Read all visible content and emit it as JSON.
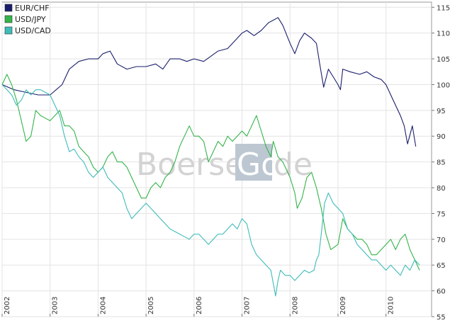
{
  "chart_data": {
    "type": "line",
    "title": "",
    "xlabel": "",
    "ylabel": "",
    "ylim": [
      55,
      116
    ],
    "xlim": [
      2002.0,
      2010.95
    ],
    "y_ticks": [
      55,
      60,
      65,
      70,
      75,
      80,
      85,
      90,
      95,
      100,
      105,
      110,
      115
    ],
    "x_ticks": [
      {
        "label": "2002",
        "value": 2002
      },
      {
        "label": "2003",
        "value": 2003
      },
      {
        "label": "2004",
        "value": 2004
      },
      {
        "label": "2005",
        "value": 2005
      },
      {
        "label": "2006",
        "value": 2006
      },
      {
        "label": "2007",
        "value": 2007
      },
      {
        "label": "2008",
        "value": 2008
      },
      {
        "label": "2009",
        "value": 2009
      },
      {
        "label": "2010",
        "value": 2010
      }
    ],
    "grid": true,
    "legend_position": "top-left",
    "watermark": {
      "text_left": "Boerse",
      "text_box": "Go",
      "text_right": "de"
    },
    "series": [
      {
        "name": "EUR/CHF",
        "color": "#1a1f6b",
        "points": [
          [
            2002.0,
            100
          ],
          [
            2002.25,
            99
          ],
          [
            2002.5,
            98.5
          ],
          [
            2002.75,
            98
          ],
          [
            2003.0,
            98
          ],
          [
            2003.25,
            100
          ],
          [
            2003.4,
            103
          ],
          [
            2003.6,
            104.5
          ],
          [
            2003.8,
            105
          ],
          [
            2004.0,
            105
          ],
          [
            2004.1,
            106
          ],
          [
            2004.25,
            106.5
          ],
          [
            2004.4,
            104
          ],
          [
            2004.6,
            103
          ],
          [
            2004.8,
            103.5
          ],
          [
            2005.0,
            103.5
          ],
          [
            2005.2,
            104
          ],
          [
            2005.35,
            103
          ],
          [
            2005.5,
            105
          ],
          [
            2005.7,
            105
          ],
          [
            2005.85,
            104.5
          ],
          [
            2006.0,
            105
          ],
          [
            2006.2,
            104.5
          ],
          [
            2006.35,
            105.5
          ],
          [
            2006.5,
            106.5
          ],
          [
            2006.7,
            107
          ],
          [
            2006.85,
            108.5
          ],
          [
            2007.0,
            110
          ],
          [
            2007.1,
            110.5
          ],
          [
            2007.25,
            109.5
          ],
          [
            2007.4,
            110.5
          ],
          [
            2007.55,
            112
          ],
          [
            2007.65,
            112.5
          ],
          [
            2007.75,
            113
          ],
          [
            2007.85,
            111.5
          ],
          [
            2008.0,
            108
          ],
          [
            2008.1,
            106
          ],
          [
            2008.2,
            108.5
          ],
          [
            2008.3,
            110
          ],
          [
            2008.45,
            109
          ],
          [
            2008.55,
            108
          ],
          [
            2008.62,
            104
          ],
          [
            2008.7,
            99.5
          ],
          [
            2008.8,
            103
          ],
          [
            2008.9,
            101.5
          ],
          [
            2009.0,
            100
          ],
          [
            2009.05,
            99
          ],
          [
            2009.1,
            103
          ],
          [
            2009.25,
            102.5
          ],
          [
            2009.45,
            102
          ],
          [
            2009.6,
            102.5
          ],
          [
            2009.75,
            101.5
          ],
          [
            2009.9,
            101
          ],
          [
            2010.0,
            100
          ],
          [
            2010.1,
            98
          ],
          [
            2010.2,
            96
          ],
          [
            2010.3,
            94
          ],
          [
            2010.38,
            92
          ],
          [
            2010.45,
            88.5
          ],
          [
            2010.55,
            92
          ],
          [
            2010.62,
            88
          ]
        ]
      },
      {
        "name": "USD/JPY",
        "color": "#33b44a",
        "points": [
          [
            2002.0,
            100
          ],
          [
            2002.1,
            102
          ],
          [
            2002.2,
            100
          ],
          [
            2002.3,
            97
          ],
          [
            2002.4,
            93
          ],
          [
            2002.5,
            89
          ],
          [
            2002.6,
            90
          ],
          [
            2002.7,
            95
          ],
          [
            2002.8,
            94
          ],
          [
            2002.9,
            93.5
          ],
          [
            2003.0,
            93
          ],
          [
            2003.1,
            94
          ],
          [
            2003.2,
            95
          ],
          [
            2003.3,
            92
          ],
          [
            2003.4,
            92
          ],
          [
            2003.5,
            91
          ],
          [
            2003.6,
            88
          ],
          [
            2003.7,
            87
          ],
          [
            2003.8,
            86
          ],
          [
            2003.9,
            84
          ],
          [
            2004.0,
            83
          ],
          [
            2004.1,
            84
          ],
          [
            2004.2,
            86
          ],
          [
            2004.3,
            87
          ],
          [
            2004.4,
            85
          ],
          [
            2004.5,
            85
          ],
          [
            2004.6,
            84
          ],
          [
            2004.7,
            82
          ],
          [
            2004.8,
            80
          ],
          [
            2004.9,
            78
          ],
          [
            2005.0,
            78
          ],
          [
            2005.1,
            80
          ],
          [
            2005.2,
            81
          ],
          [
            2005.3,
            80
          ],
          [
            2005.4,
            82
          ],
          [
            2005.5,
            83
          ],
          [
            2005.6,
            85
          ],
          [
            2005.7,
            88
          ],
          [
            2005.8,
            90
          ],
          [
            2005.9,
            92
          ],
          [
            2006.0,
            90
          ],
          [
            2006.1,
            90
          ],
          [
            2006.2,
            89
          ],
          [
            2006.3,
            85
          ],
          [
            2006.4,
            87
          ],
          [
            2006.5,
            89
          ],
          [
            2006.6,
            88
          ],
          [
            2006.7,
            90
          ],
          [
            2006.8,
            89
          ],
          [
            2006.9,
            90
          ],
          [
            2007.0,
            91
          ],
          [
            2007.1,
            90
          ],
          [
            2007.2,
            92
          ],
          [
            2007.3,
            94
          ],
          [
            2007.4,
            91
          ],
          [
            2007.5,
            88
          ],
          [
            2007.6,
            86
          ],
          [
            2007.65,
            89
          ],
          [
            2007.75,
            86
          ],
          [
            2007.85,
            85
          ],
          [
            2008.0,
            82
          ],
          [
            2008.1,
            79
          ],
          [
            2008.15,
            76
          ],
          [
            2008.25,
            78
          ],
          [
            2008.35,
            82
          ],
          [
            2008.45,
            83
          ],
          [
            2008.55,
            80
          ],
          [
            2008.65,
            76
          ],
          [
            2008.75,
            71
          ],
          [
            2008.85,
            68
          ],
          [
            2009.0,
            69
          ],
          [
            2009.1,
            74
          ],
          [
            2009.2,
            72
          ],
          [
            2009.3,
            71
          ],
          [
            2009.4,
            70
          ],
          [
            2009.5,
            70
          ],
          [
            2009.6,
            69
          ],
          [
            2009.7,
            67
          ],
          [
            2009.8,
            67
          ],
          [
            2009.9,
            68
          ],
          [
            2010.0,
            69
          ],
          [
            2010.1,
            70
          ],
          [
            2010.2,
            68
          ],
          [
            2010.3,
            70
          ],
          [
            2010.4,
            71
          ],
          [
            2010.5,
            68
          ],
          [
            2010.6,
            66
          ],
          [
            2010.7,
            64
          ]
        ]
      },
      {
        "name": "USD/CAD",
        "color": "#3ebcb8",
        "points": [
          [
            2002.0,
            100
          ],
          [
            2002.1,
            99
          ],
          [
            2002.2,
            98
          ],
          [
            2002.3,
            96
          ],
          [
            2002.4,
            97
          ],
          [
            2002.5,
            99
          ],
          [
            2002.6,
            98
          ],
          [
            2002.7,
            99
          ],
          [
            2002.8,
            99
          ],
          [
            2002.9,
            98.5
          ],
          [
            2003.0,
            98
          ],
          [
            2003.1,
            96
          ],
          [
            2003.2,
            94
          ],
          [
            2003.3,
            90
          ],
          [
            2003.4,
            87
          ],
          [
            2003.5,
            87.5
          ],
          [
            2003.6,
            86
          ],
          [
            2003.7,
            85
          ],
          [
            2003.8,
            83
          ],
          [
            2003.9,
            82
          ],
          [
            2004.0,
            83
          ],
          [
            2004.1,
            84
          ],
          [
            2004.2,
            82
          ],
          [
            2004.3,
            81
          ],
          [
            2004.4,
            80
          ],
          [
            2004.5,
            79
          ],
          [
            2004.6,
            76
          ],
          [
            2004.7,
            74
          ],
          [
            2004.8,
            75
          ],
          [
            2004.9,
            76
          ],
          [
            2005.0,
            77
          ],
          [
            2005.1,
            76
          ],
          [
            2005.2,
            75
          ],
          [
            2005.3,
            74
          ],
          [
            2005.4,
            73
          ],
          [
            2005.5,
            72
          ],
          [
            2005.6,
            71.5
          ],
          [
            2005.7,
            71
          ],
          [
            2005.8,
            70.5
          ],
          [
            2005.9,
            70
          ],
          [
            2006.0,
            71
          ],
          [
            2006.1,
            71
          ],
          [
            2006.2,
            70
          ],
          [
            2006.3,
            69
          ],
          [
            2006.4,
            70
          ],
          [
            2006.5,
            71
          ],
          [
            2006.6,
            71
          ],
          [
            2006.7,
            72
          ],
          [
            2006.8,
            73
          ],
          [
            2006.9,
            72
          ],
          [
            2007.0,
            74
          ],
          [
            2007.1,
            73
          ],
          [
            2007.2,
            69
          ],
          [
            2007.3,
            67
          ],
          [
            2007.4,
            66
          ],
          [
            2007.5,
            65
          ],
          [
            2007.6,
            64
          ],
          [
            2007.7,
            59
          ],
          [
            2007.75,
            62
          ],
          [
            2007.8,
            64
          ],
          [
            2007.9,
            63
          ],
          [
            2008.0,
            63
          ],
          [
            2008.1,
            62
          ],
          [
            2008.2,
            63
          ],
          [
            2008.3,
            64
          ],
          [
            2008.4,
            63.5
          ],
          [
            2008.5,
            64
          ],
          [
            2008.55,
            66
          ],
          [
            2008.6,
            67
          ],
          [
            2008.65,
            71
          ],
          [
            2008.72,
            77
          ],
          [
            2008.8,
            79
          ],
          [
            2008.9,
            77
          ],
          [
            2009.0,
            76
          ],
          [
            2009.1,
            75
          ],
          [
            2009.2,
            72
          ],
          [
            2009.3,
            71
          ],
          [
            2009.4,
            69
          ],
          [
            2009.5,
            68
          ],
          [
            2009.6,
            67
          ],
          [
            2009.7,
            66
          ],
          [
            2009.8,
            66
          ],
          [
            2009.9,
            65
          ],
          [
            2010.0,
            64
          ],
          [
            2010.1,
            65
          ],
          [
            2010.2,
            64
          ],
          [
            2010.3,
            63
          ],
          [
            2010.4,
            65
          ],
          [
            2010.5,
            64
          ],
          [
            2010.6,
            66
          ],
          [
            2010.7,
            65
          ]
        ]
      }
    ]
  }
}
